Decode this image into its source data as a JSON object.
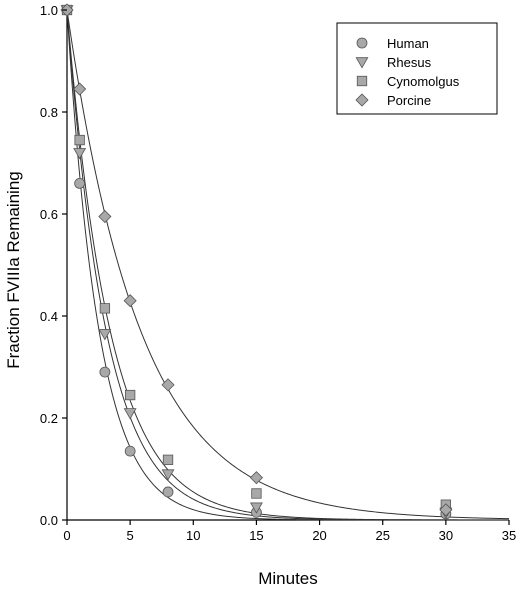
{
  "chart_data": {
    "type": "scatter",
    "title": "",
    "xlabel": "Minutes",
    "ylabel": "Fraction FVIIIa Remaining",
    "xlim": [
      0,
      35
    ],
    "ylim": [
      0,
      1.0
    ],
    "x_ticks": [
      0,
      5,
      10,
      15,
      20,
      25,
      30,
      35
    ],
    "y_ticks": [
      "0.0",
      "0.2",
      "0.4",
      "0.6",
      "0.8",
      "1.0"
    ],
    "grid": false,
    "legend_position": "top-right",
    "fit_curves": true,
    "series": [
      {
        "name": "Human",
        "marker": "circle",
        "color": "#a8a8a8",
        "points": [
          [
            0,
            1.0
          ],
          [
            1,
            0.66
          ],
          [
            3,
            0.29
          ],
          [
            5,
            0.135
          ],
          [
            8,
            0.055
          ],
          [
            15,
            0.015
          ],
          [
            30,
            0.012
          ]
        ],
        "fit_rate": 0.39
      },
      {
        "name": "Rhesus",
        "marker": "triangle-down",
        "color": "#a8a8a8",
        "points": [
          [
            0,
            1.0
          ],
          [
            1,
            0.72
          ],
          [
            3,
            0.365
          ],
          [
            5,
            0.21
          ],
          [
            8,
            0.09
          ],
          [
            15,
            0.025
          ],
          [
            30,
            0.015
          ]
        ],
        "fit_rate": 0.32
      },
      {
        "name": "Cynomolgus",
        "marker": "square",
        "color": "#a8a8a8",
        "points": [
          [
            0,
            1.0
          ],
          [
            1,
            0.745
          ],
          [
            3,
            0.415
          ],
          [
            5,
            0.245
          ],
          [
            8,
            0.118
          ],
          [
            15,
            0.052
          ],
          [
            30,
            0.03
          ]
        ],
        "fit_rate": 0.29
      },
      {
        "name": "Porcine",
        "marker": "diamond",
        "color": "#a8a8a8",
        "points": [
          [
            0,
            1.0
          ],
          [
            1,
            0.845
          ],
          [
            3,
            0.595
          ],
          [
            5,
            0.43
          ],
          [
            8,
            0.265
          ],
          [
            15,
            0.083
          ],
          [
            30,
            0.02
          ]
        ],
        "fit_rate": 0.17
      }
    ]
  }
}
